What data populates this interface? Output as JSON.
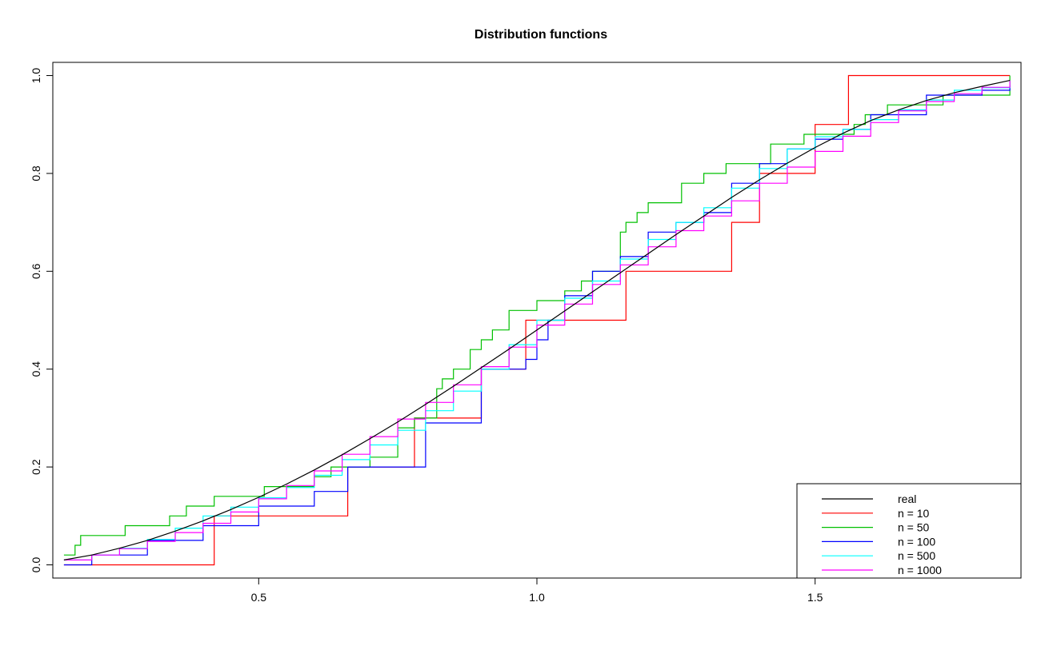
{
  "chart_data": {
    "type": "line",
    "title": "Distribution functions",
    "xlabel": "",
    "ylabel": "",
    "xlim": [
      0.13,
      1.87
    ],
    "ylim": [
      -0.027,
      1.027
    ],
    "x_ticks": [
      0.5,
      1.0,
      1.5
    ],
    "x_tick_labels": [
      "0.5",
      "1.0",
      "1.5"
    ],
    "y_ticks": [
      0.0,
      0.2,
      0.4,
      0.6,
      0.8,
      1.0
    ],
    "y_tick_labels": [
      "0.0",
      "0.2",
      "0.4",
      "0.6",
      "0.8",
      "1.0"
    ],
    "grid": false,
    "legend_position": "bottom-right",
    "series": [
      {
        "name": "real",
        "color": "#000000",
        "kind": "curve",
        "x": [
          0.15,
          0.2,
          0.25,
          0.3,
          0.35,
          0.4,
          0.45,
          0.5,
          0.55,
          0.6,
          0.65,
          0.7,
          0.75,
          0.8,
          0.85,
          0.9,
          0.95,
          1.0,
          1.05,
          1.1,
          1.15,
          1.2,
          1.25,
          1.3,
          1.35,
          1.4,
          1.45,
          1.5,
          1.55,
          1.6,
          1.65,
          1.7,
          1.75,
          1.8,
          1.85
        ],
        "y": [
          0.01,
          0.02,
          0.034,
          0.05,
          0.069,
          0.09,
          0.113,
          0.138,
          0.165,
          0.194,
          0.225,
          0.258,
          0.292,
          0.328,
          0.365,
          0.403,
          0.441,
          0.48,
          0.519,
          0.558,
          0.597,
          0.636,
          0.675,
          0.713,
          0.751,
          0.787,
          0.821,
          0.853,
          0.882,
          0.908,
          0.93,
          0.949,
          0.965,
          0.978,
          0.99
        ]
      },
      {
        "name": "n = 10",
        "color": "#ff0000",
        "kind": "step",
        "x": [
          0.15,
          0.42,
          0.66,
          0.78,
          0.84,
          0.9,
          0.98,
          1.16,
          1.35,
          1.4,
          1.5,
          1.56,
          1.85
        ],
        "y": [
          0.0,
          0.1,
          0.2,
          0.3,
          0.3,
          0.4,
          0.5,
          0.6,
          0.7,
          0.8,
          0.9,
          1.0,
          1.0
        ]
      },
      {
        "name": "n = 50",
        "color": "#00c000",
        "kind": "step",
        "x": [
          0.15,
          0.17,
          0.18,
          0.26,
          0.34,
          0.37,
          0.42,
          0.51,
          0.6,
          0.63,
          0.7,
          0.75,
          0.78,
          0.82,
          0.83,
          0.85,
          0.88,
          0.9,
          0.92,
          0.95,
          1.0,
          1.05,
          1.08,
          1.1,
          1.15,
          1.16,
          1.18,
          1.2,
          1.26,
          1.3,
          1.34,
          1.42,
          1.48,
          1.52,
          1.57,
          1.59,
          1.63,
          1.73,
          1.85
        ],
        "y": [
          0.02,
          0.04,
          0.06,
          0.08,
          0.1,
          0.12,
          0.14,
          0.16,
          0.18,
          0.2,
          0.22,
          0.28,
          0.3,
          0.36,
          0.38,
          0.4,
          0.44,
          0.46,
          0.48,
          0.52,
          0.54,
          0.56,
          0.58,
          0.6,
          0.68,
          0.7,
          0.72,
          0.74,
          0.78,
          0.8,
          0.82,
          0.86,
          0.88,
          0.88,
          0.9,
          0.92,
          0.94,
          0.96,
          1.0
        ]
      },
      {
        "name": "n = 100",
        "color": "#0000ff",
        "kind": "step",
        "x": [
          0.15,
          0.2,
          0.3,
          0.4,
          0.5,
          0.6,
          0.66,
          0.8,
          0.9,
          0.98,
          1.0,
          1.02,
          1.05,
          1.1,
          1.15,
          1.2,
          1.25,
          1.3,
          1.35,
          1.4,
          1.45,
          1.5,
          1.55,
          1.6,
          1.7,
          1.75,
          1.8,
          1.85
        ],
        "y": [
          0.0,
          0.02,
          0.05,
          0.08,
          0.12,
          0.15,
          0.2,
          0.29,
          0.4,
          0.42,
          0.46,
          0.5,
          0.55,
          0.6,
          0.63,
          0.68,
          0.7,
          0.72,
          0.78,
          0.82,
          0.85,
          0.87,
          0.89,
          0.92,
          0.96,
          0.96,
          0.97,
          0.98
        ]
      },
      {
        "name": "n = 500",
        "color": "#00ffff",
        "kind": "step",
        "x": [
          0.15,
          0.2,
          0.25,
          0.3,
          0.35,
          0.4,
          0.45,
          0.5,
          0.55,
          0.6,
          0.65,
          0.7,
          0.75,
          0.8,
          0.85,
          0.9,
          0.95,
          1.0,
          1.05,
          1.1,
          1.15,
          1.2,
          1.25,
          1.3,
          1.35,
          1.4,
          1.45,
          1.5,
          1.55,
          1.6,
          1.65,
          1.7,
          1.75,
          1.8,
          1.85
        ],
        "y": [
          0.01,
          0.02,
          0.034,
          0.052,
          0.075,
          0.1,
          0.118,
          0.137,
          0.158,
          0.183,
          0.215,
          0.245,
          0.275,
          0.315,
          0.355,
          0.4,
          0.45,
          0.5,
          0.545,
          0.58,
          0.625,
          0.665,
          0.7,
          0.73,
          0.77,
          0.81,
          0.85,
          0.875,
          0.89,
          0.91,
          0.93,
          0.95,
          0.97,
          0.975,
          0.99
        ]
      },
      {
        "name": "n = 1000",
        "color": "#ff00ff",
        "kind": "step",
        "x": [
          0.15,
          0.2,
          0.25,
          0.3,
          0.35,
          0.4,
          0.45,
          0.5,
          0.55,
          0.6,
          0.65,
          0.7,
          0.75,
          0.8,
          0.85,
          0.9,
          0.95,
          1.0,
          1.05,
          1.1,
          1.15,
          1.2,
          1.25,
          1.3,
          1.35,
          1.4,
          1.45,
          1.5,
          1.55,
          1.6,
          1.65,
          1.7,
          1.75,
          1.8,
          1.85
        ],
        "y": [
          0.01,
          0.02,
          0.033,
          0.048,
          0.066,
          0.085,
          0.108,
          0.135,
          0.162,
          0.192,
          0.226,
          0.262,
          0.298,
          0.332,
          0.368,
          0.405,
          0.445,
          0.49,
          0.533,
          0.573,
          0.613,
          0.65,
          0.683,
          0.713,
          0.744,
          0.78,
          0.813,
          0.845,
          0.876,
          0.904,
          0.928,
          0.947,
          0.963,
          0.976,
          0.99
        ]
      }
    ]
  }
}
